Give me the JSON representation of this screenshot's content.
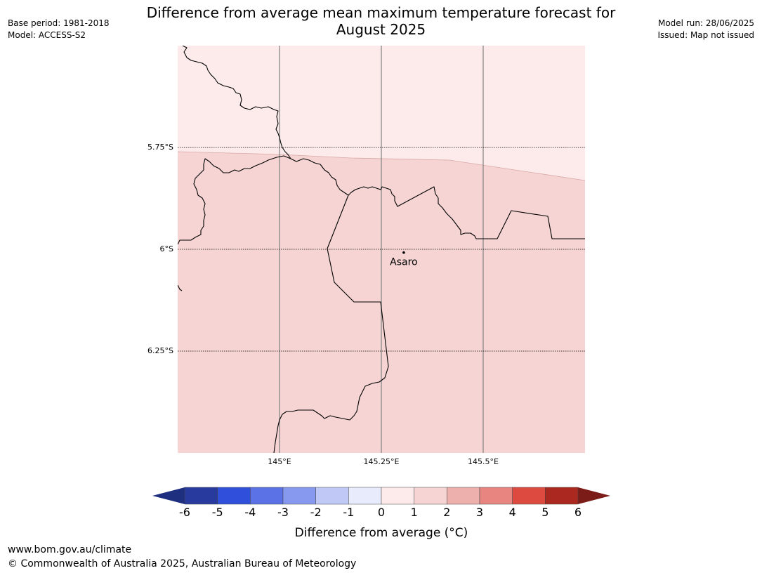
{
  "header": {
    "title_line1": "Difference from average mean maximum temperature forecast for",
    "title_line2": "August 2025",
    "base_period": "Base period: 1981-2018",
    "model": "Model: ACCESS-S2",
    "model_run": "Model run: 28/06/2025",
    "issued": "Issued: Map not issued"
  },
  "map": {
    "extent": {
      "lon_min": 144.75,
      "lon_max": 145.75,
      "lat_min": -6.5,
      "lat_max": -5.5
    },
    "lat_gridlines": [
      {
        "value": -5.75,
        "label": "5.75°S"
      },
      {
        "value": -6.0,
        "label": "6°S"
      },
      {
        "value": -6.25,
        "label": "6.25°S"
      }
    ],
    "lon_gridlines": [
      {
        "value": 145.0,
        "label": "145°E"
      },
      {
        "value": 145.25,
        "label": "145.25°E"
      },
      {
        "value": 145.5,
        "label": "145.5°E"
      }
    ],
    "place": {
      "name": "Asaro",
      "lon": 145.305,
      "lat": -6.008
    },
    "colors": {
      "anomaly_0_to_1": "#fcebea",
      "anomaly_1_to_2": "#f5d4d3",
      "boundary": "#000000",
      "gridline": "#808080"
    }
  },
  "colorbar": {
    "ticks": [
      "-6",
      "-5",
      "-4",
      "-3",
      "-2",
      "-1",
      "0",
      "1",
      "2",
      "3",
      "4",
      "5",
      "6"
    ],
    "colors": [
      "#283a9e",
      "#3050dc",
      "#5a72e6",
      "#8799ee",
      "#c0c8f5",
      "#e8ebfb",
      "#fcebea",
      "#f5d4d3",
      "#eeb0ad",
      "#e88580",
      "#dc4a40",
      "#ab2820"
    ],
    "under_color": "#1f2f80",
    "over_color": "#7b1c18",
    "label": "Difference from average (°C)"
  },
  "footer": {
    "url": "www.bom.gov.au/climate",
    "copyright": "© Commonwealth of Australia 2025, Australian Bureau of Meteorology"
  }
}
